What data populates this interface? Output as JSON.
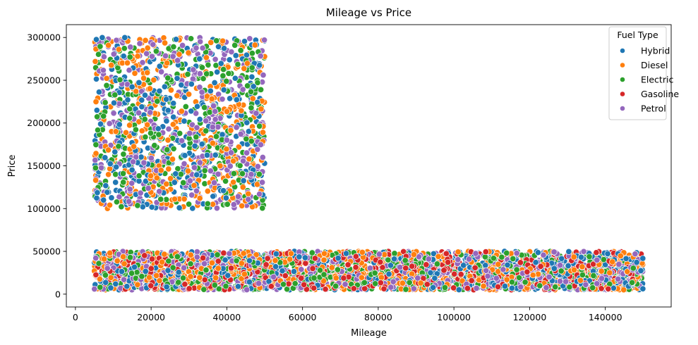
{
  "chart_data": {
    "type": "scatter",
    "title": "Mileage vs Price",
    "xlabel": "Mileage",
    "ylabel": "Price",
    "xlim": [
      -2400,
      157400
    ],
    "ylim": [
      -15000,
      315000
    ],
    "xticks": [
      0,
      20000,
      40000,
      60000,
      80000,
      100000,
      120000,
      140000
    ],
    "xtick_labels": [
      "0",
      "20000",
      "40000",
      "60000",
      "80000",
      "100000",
      "120000",
      "140000"
    ],
    "yticks": [
      0,
      50000,
      100000,
      150000,
      200000,
      250000,
      300000
    ],
    "ytick_labels": [
      "0",
      "50000",
      "100000",
      "150000",
      "200000",
      "250000",
      "300000"
    ],
    "grid": false,
    "legend": {
      "title": "Fuel Type",
      "placement": "top-right",
      "entries": [
        "Hybrid",
        "Diesel",
        "Electric",
        "Gasoline",
        "Petrol"
      ]
    },
    "series": [
      {
        "name": "Hybrid",
        "color": "#1f77b4"
      },
      {
        "name": "Diesel",
        "color": "#ff7f0e"
      },
      {
        "name": "Electric",
        "color": "#2ca02c"
      },
      {
        "name": "Gasoline",
        "color": "#d62728"
      },
      {
        "name": "Petrol",
        "color": "#9467bd"
      }
    ],
    "clusters": [
      {
        "description": "high price cluster",
        "x_range": [
          5000,
          50000
        ],
        "y_range": [
          100000,
          300000
        ],
        "series": [
          "Hybrid",
          "Diesel",
          "Electric",
          "Petrol"
        ]
      },
      {
        "description": "low price cluster",
        "x_range": [
          5000,
          150000
        ],
        "y_range": [
          5000,
          50000
        ],
        "series": [
          "Hybrid",
          "Diesel",
          "Electric",
          "Gasoline",
          "Petrol"
        ]
      }
    ]
  }
}
